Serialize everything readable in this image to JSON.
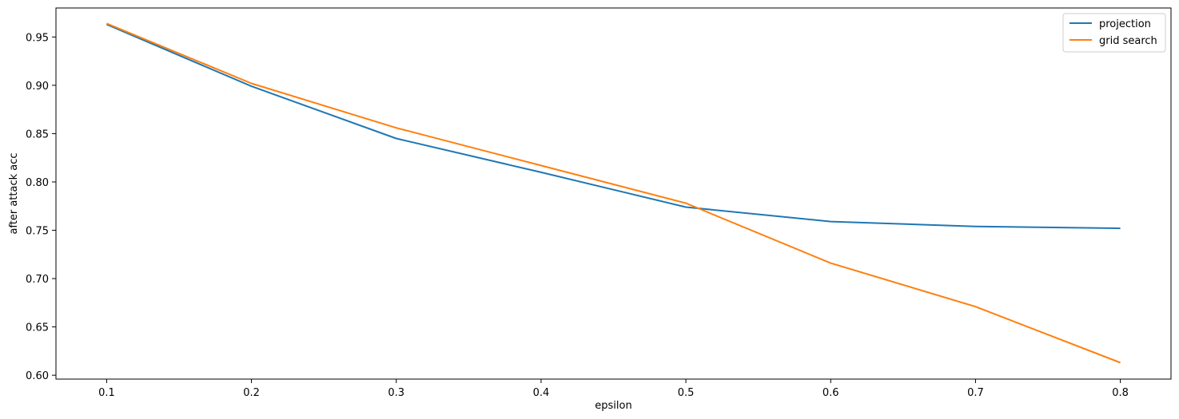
{
  "chart_data": {
    "type": "line",
    "title": "",
    "xlabel": "epsilon",
    "ylabel": "after attack acc",
    "x": [
      0.1,
      0.2,
      0.3,
      0.4,
      0.5,
      0.6,
      0.7,
      0.8
    ],
    "xlim": [
      0.065,
      0.835
    ],
    "ylim": [
      0.596,
      0.98
    ],
    "xticks": [
      "0.1",
      "0.2",
      "0.3",
      "0.4",
      "0.5",
      "0.6",
      "0.7",
      "0.8"
    ],
    "yticks": [
      "0.60",
      "0.65",
      "0.70",
      "0.75",
      "0.80",
      "0.85",
      "0.90",
      "0.95"
    ],
    "grid": false,
    "legend_position": "top-right",
    "series": [
      {
        "name": "projection",
        "color": "#1f77b4",
        "values": [
          0.963,
          0.899,
          0.845,
          0.81,
          0.774,
          0.759,
          0.754,
          0.752
        ]
      },
      {
        "name": "grid search",
        "color": "#ff7f0e",
        "values": [
          0.964,
          0.902,
          0.856,
          0.817,
          0.778,
          0.716,
          0.671,
          0.613
        ]
      }
    ]
  }
}
